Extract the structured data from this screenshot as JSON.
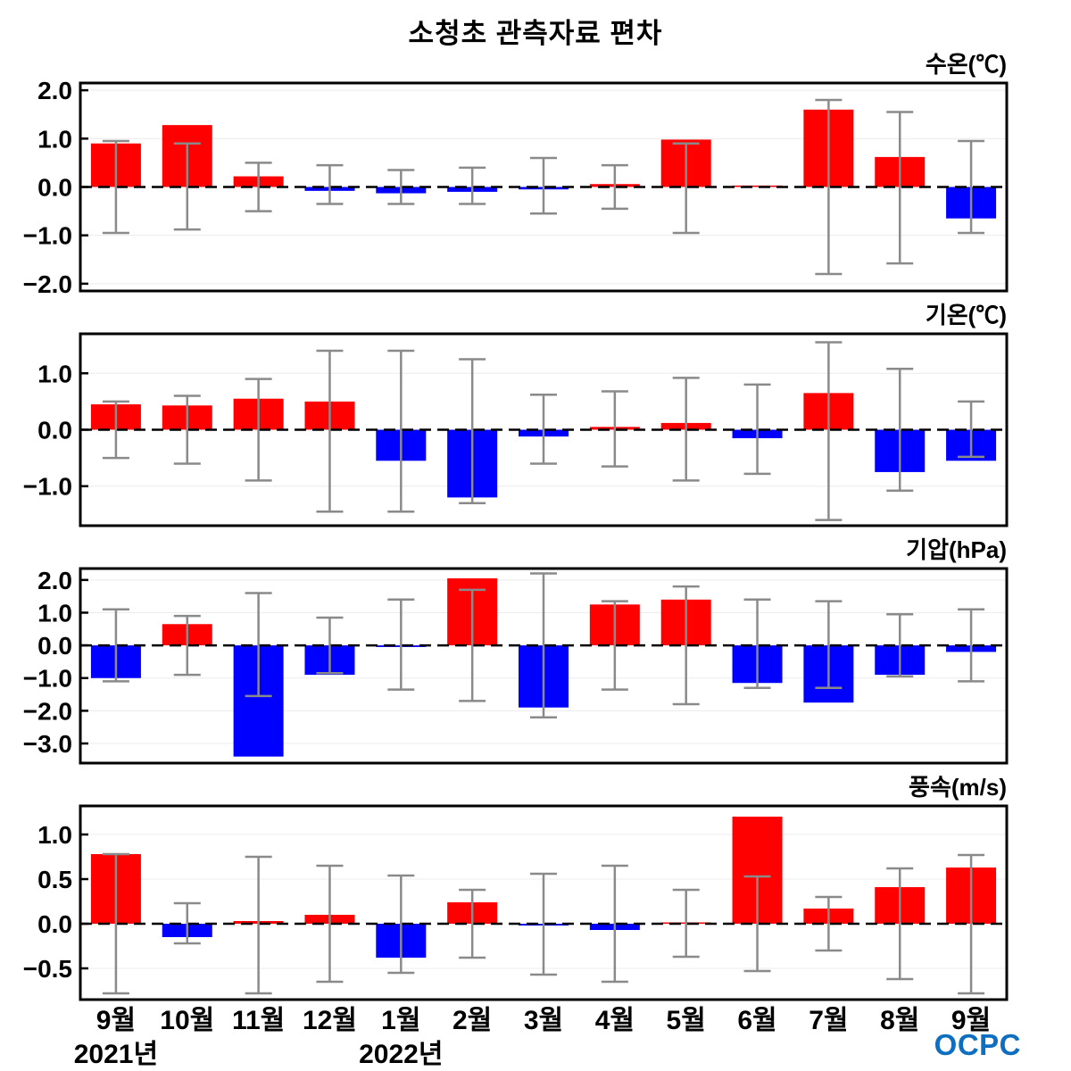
{
  "title": "소청초 관측자료 편차",
  "logo": {
    "text": "OCPC"
  },
  "colors": {
    "positive_bar": "#ff0000",
    "negative_bar": "#0000ff",
    "error_bar": "#8a8a8a",
    "zero_line": "#000000",
    "gridline": "#ececec",
    "border": "#000000",
    "logo_blue": "#0e6fc0"
  },
  "x_axis": {
    "categories": [
      "9월",
      "10월",
      "11월",
      "12월",
      "1월",
      "2월",
      "3월",
      "4월",
      "5월",
      "6월",
      "7월",
      "8월",
      "9월"
    ],
    "year_labels": [
      {
        "label": "2021년",
        "slot": 0
      },
      {
        "label": "2022년",
        "slot": 4
      }
    ]
  },
  "chart_data": [
    {
      "type": "bar",
      "key": "water-temp",
      "title": "수온(℃)",
      "ylim": [
        -2.15,
        2.15
      ],
      "yticks": [
        2.0,
        1.0,
        0.0,
        -1.0,
        -2.0
      ],
      "ytick_labels": [
        "2.0",
        "1.0",
        "0.0",
        "−1.0",
        "−2.0"
      ],
      "values": [
        0.9,
        1.28,
        0.22,
        -0.08,
        -0.13,
        -0.1,
        -0.05,
        0.06,
        0.98,
        0.03,
        1.6,
        0.62,
        -0.65
      ],
      "error_lo": [
        -0.95,
        -0.88,
        -0.5,
        -0.35,
        -0.35,
        -0.35,
        -0.55,
        -0.45,
        -0.95,
        null,
        -1.8,
        -1.58,
        -0.95
      ],
      "error_hi": [
        0.95,
        0.9,
        0.5,
        0.45,
        0.35,
        0.4,
        0.6,
        0.45,
        0.9,
        null,
        1.8,
        1.55,
        0.95
      ]
    },
    {
      "type": "bar",
      "key": "air-temp",
      "title": "기온(℃)",
      "ylim": [
        -1.7,
        1.7
      ],
      "yticks": [
        1.0,
        0.0,
        -1.0
      ],
      "ytick_labels": [
        "1.0",
        "0.0",
        "−1.0"
      ],
      "values": [
        0.45,
        0.43,
        0.55,
        0.5,
        -0.55,
        -1.2,
        -0.12,
        0.05,
        0.12,
        -0.15,
        0.65,
        -0.75,
        -0.55
      ],
      "error_lo": [
        -0.5,
        -0.6,
        -0.9,
        -1.45,
        -1.45,
        -1.3,
        -0.6,
        -0.65,
        -0.9,
        -0.78,
        -1.6,
        -1.08,
        -0.48
      ],
      "error_hi": [
        0.5,
        0.6,
        0.9,
        1.4,
        1.4,
        1.25,
        0.62,
        0.68,
        0.92,
        0.8,
        1.55,
        1.08,
        0.5
      ]
    },
    {
      "type": "bar",
      "key": "pressure",
      "title": "기압(hPa)",
      "ylim": [
        -3.6,
        2.35
      ],
      "yticks": [
        2.0,
        1.0,
        0.0,
        -1.0,
        -2.0,
        -3.0
      ],
      "ytick_labels": [
        "2.0",
        "1.0",
        "0.0",
        "−1.0",
        "−2.0",
        "−3.0"
      ],
      "values": [
        -1.0,
        0.65,
        -3.4,
        -0.9,
        -0.05,
        2.05,
        -1.9,
        1.25,
        1.4,
        -1.15,
        -1.75,
        -0.9,
        -0.2
      ],
      "error_lo": [
        -1.1,
        -0.9,
        -1.55,
        -0.85,
        -1.35,
        -1.7,
        -2.2,
        -1.35,
        -1.8,
        -1.3,
        -1.3,
        -0.95,
        -1.1
      ],
      "error_hi": [
        1.1,
        0.9,
        1.6,
        0.85,
        1.4,
        1.7,
        2.2,
        1.35,
        1.8,
        1.4,
        1.35,
        0.95,
        1.1
      ]
    },
    {
      "type": "bar",
      "key": "wind-speed",
      "title": "풍속(m/s)",
      "ylim": [
        -0.85,
        1.32
      ],
      "yticks": [
        1.0,
        0.5,
        0.0,
        -0.5
      ],
      "ytick_labels": [
        "1.0",
        "0.5",
        "0.0",
        "−0.5"
      ],
      "values": [
        0.78,
        -0.15,
        0.03,
        0.1,
        -0.38,
        0.24,
        -0.02,
        -0.07,
        0.01,
        1.2,
        0.17,
        0.41,
        0.63
      ],
      "error_lo": [
        -0.78,
        -0.22,
        -0.78,
        -0.65,
        -0.55,
        -0.38,
        -0.57,
        -0.65,
        -0.37,
        -0.53,
        -0.3,
        -0.62,
        -0.78
      ],
      "error_hi": [
        0.78,
        0.23,
        0.75,
        0.65,
        0.54,
        0.38,
        0.56,
        0.65,
        0.38,
        0.53,
        0.3,
        0.62,
        0.77
      ]
    }
  ]
}
